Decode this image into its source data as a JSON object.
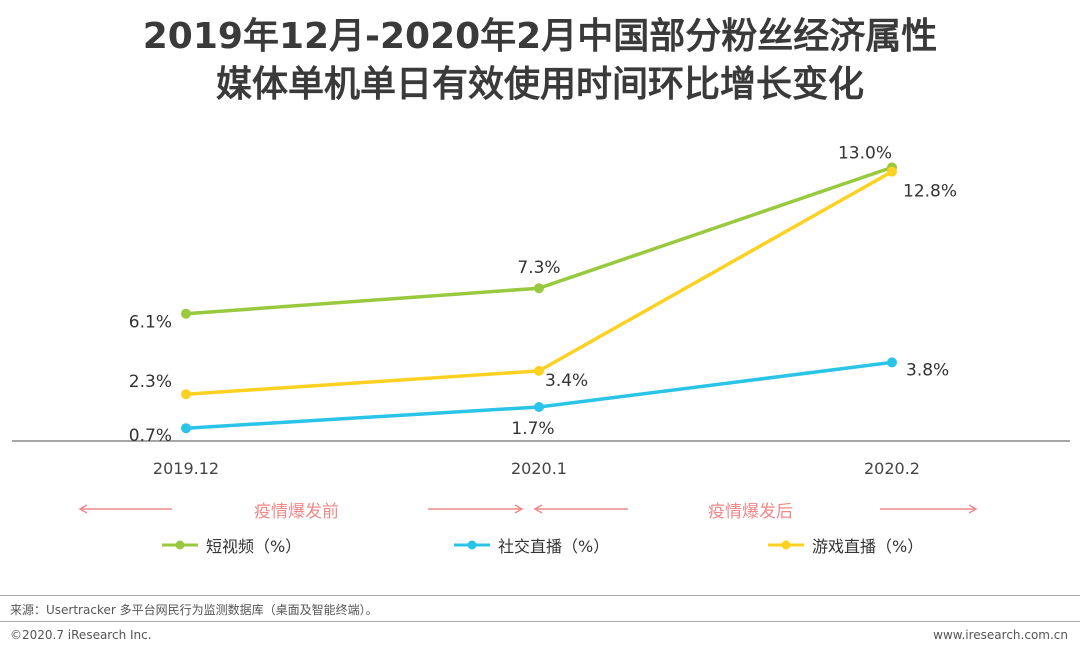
{
  "title": {
    "line1": "2019年12月-2020年2月中国部分粉丝经济属性",
    "line2": "媒体单机单日有效使用时间环比增长变化"
  },
  "phases": {
    "before": "疫情爆发前",
    "after": "疫情爆发后",
    "color": "#f08a8a"
  },
  "chart_data": {
    "type": "line",
    "title": "2019年12月-2020年2月中国部分粉丝经济属性媒体单机单日有效使用时间环比增长变化",
    "categories": [
      "2019.12",
      "2020.1",
      "2020.2"
    ],
    "unit": "%",
    "ylim": [
      0,
      14
    ],
    "grid": false,
    "legend_position": "bottom",
    "series": [
      {
        "name": "短视频（%）",
        "values": [
          6.1,
          7.3,
          13.0
        ],
        "labels": [
          "6.1%",
          "7.3%",
          "13.0%"
        ],
        "color": "#99c93e"
      },
      {
        "name": "社交直播（%）",
        "values": [
          0.7,
          1.7,
          3.8
        ],
        "labels": [
          "0.7%",
          "1.7%",
          "3.8%"
        ],
        "color": "#29c4e8"
      },
      {
        "name": "游戏直播（%）",
        "values": [
          2.3,
          3.4,
          12.8
        ],
        "labels": [
          "2.3%",
          "3.4%",
          "12.8%"
        ],
        "color": "#fcd121"
      }
    ]
  },
  "footer": {
    "source": "来源：Usertracker 多平台网民行为监测数据库（桌面及智能终端）。",
    "copyright": "©2020.7 iResearch Inc.",
    "website": "www.iresearch.com.cn",
    "rule_color": "#aaaaaa"
  }
}
